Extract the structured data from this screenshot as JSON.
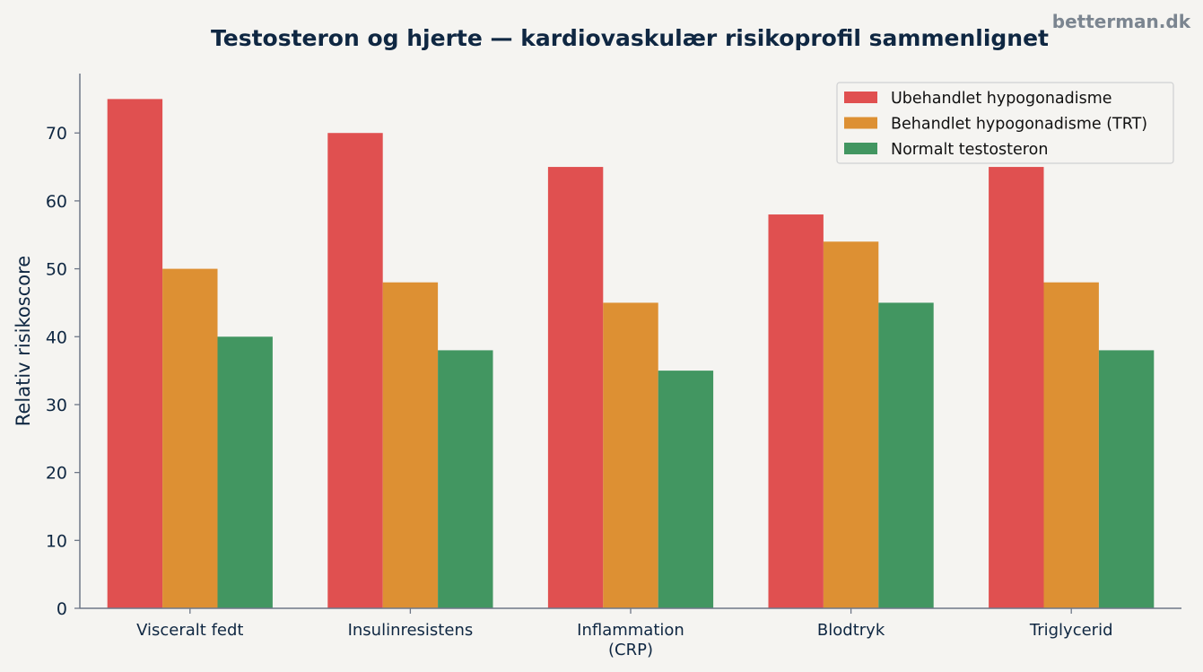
{
  "watermark": "betterman.dk",
  "chart_data": {
    "type": "bar",
    "title": "Testosteron og hjerte — kardiovaskulær risikoprofil sammenlignet",
    "xlabel": "",
    "ylabel": "Relativ risikoscore",
    "categories": [
      "Visceralt fedt",
      "Insulinresistens",
      "Inflammation\n(CRP)",
      "Blodtryk",
      "Triglycerid"
    ],
    "series": [
      {
        "name": "Ubehandlet hypogonadisme",
        "color": "#e05050",
        "values": [
          75,
          70,
          65,
          58,
          65
        ]
      },
      {
        "name": "Behandlet hypogonadisme (TRT)",
        "color": "#dd9033",
        "values": [
          50,
          48,
          45,
          54,
          48
        ]
      },
      {
        "name": "Normalt testosteron",
        "color": "#429661",
        "values": [
          40,
          38,
          35,
          45,
          38
        ]
      }
    ],
    "ylim": [
      0,
      78.75
    ],
    "yticks": [
      0,
      10,
      20,
      30,
      40,
      50,
      60,
      70
    ],
    "grid": false,
    "legend_position": "top-right"
  }
}
